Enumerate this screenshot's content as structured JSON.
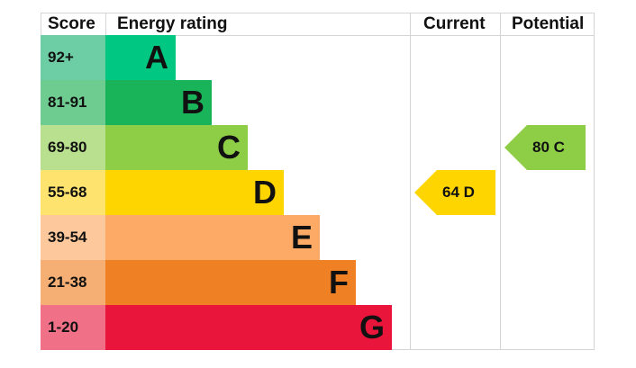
{
  "headers": {
    "score": "Score",
    "energy_rating": "Energy rating",
    "current": "Current",
    "potential": "Potential"
  },
  "bands": [
    {
      "score": "92+",
      "letter": "A",
      "color": "#00c781",
      "score_color": "#6dcea6"
    },
    {
      "score": "81-91",
      "letter": "B",
      "color": "#19b459",
      "score_color": "#6fcc90"
    },
    {
      "score": "69-80",
      "letter": "C",
      "color": "#8dce46",
      "score_color": "#b8e08e"
    },
    {
      "score": "55-68",
      "letter": "D",
      "color": "#ffd500",
      "score_color": "#ffe36f"
    },
    {
      "score": "39-54",
      "letter": "E",
      "color": "#fcaa65",
      "score_color": "#fdc89c"
    },
    {
      "score": "21-38",
      "letter": "F",
      "color": "#ef8023",
      "score_color": "#f5ae73"
    },
    {
      "score": "1-20",
      "letter": "G",
      "color": "#e9153b",
      "score_color": "#f07088"
    }
  ],
  "current": {
    "label": "64  D",
    "value": 64,
    "band": "D",
    "color": "#ffd500"
  },
  "potential": {
    "label": "80  C",
    "value": 80,
    "band": "C",
    "color": "#8dce46"
  },
  "chart_data": {
    "type": "bar",
    "title": "Energy rating",
    "categories": [
      "A",
      "B",
      "C",
      "D",
      "E",
      "F",
      "G"
    ],
    "score_ranges": [
      "92+",
      "81-91",
      "69-80",
      "55-68",
      "39-54",
      "21-38",
      "1-20"
    ],
    "values": [
      1,
      2,
      3,
      4,
      5,
      6,
      7
    ],
    "series": [
      {
        "name": "Current",
        "values": [
          64
        ],
        "band": "D"
      },
      {
        "name": "Potential",
        "values": [
          80
        ],
        "band": "C"
      }
    ],
    "xlabel": "",
    "ylabel": "Score"
  }
}
